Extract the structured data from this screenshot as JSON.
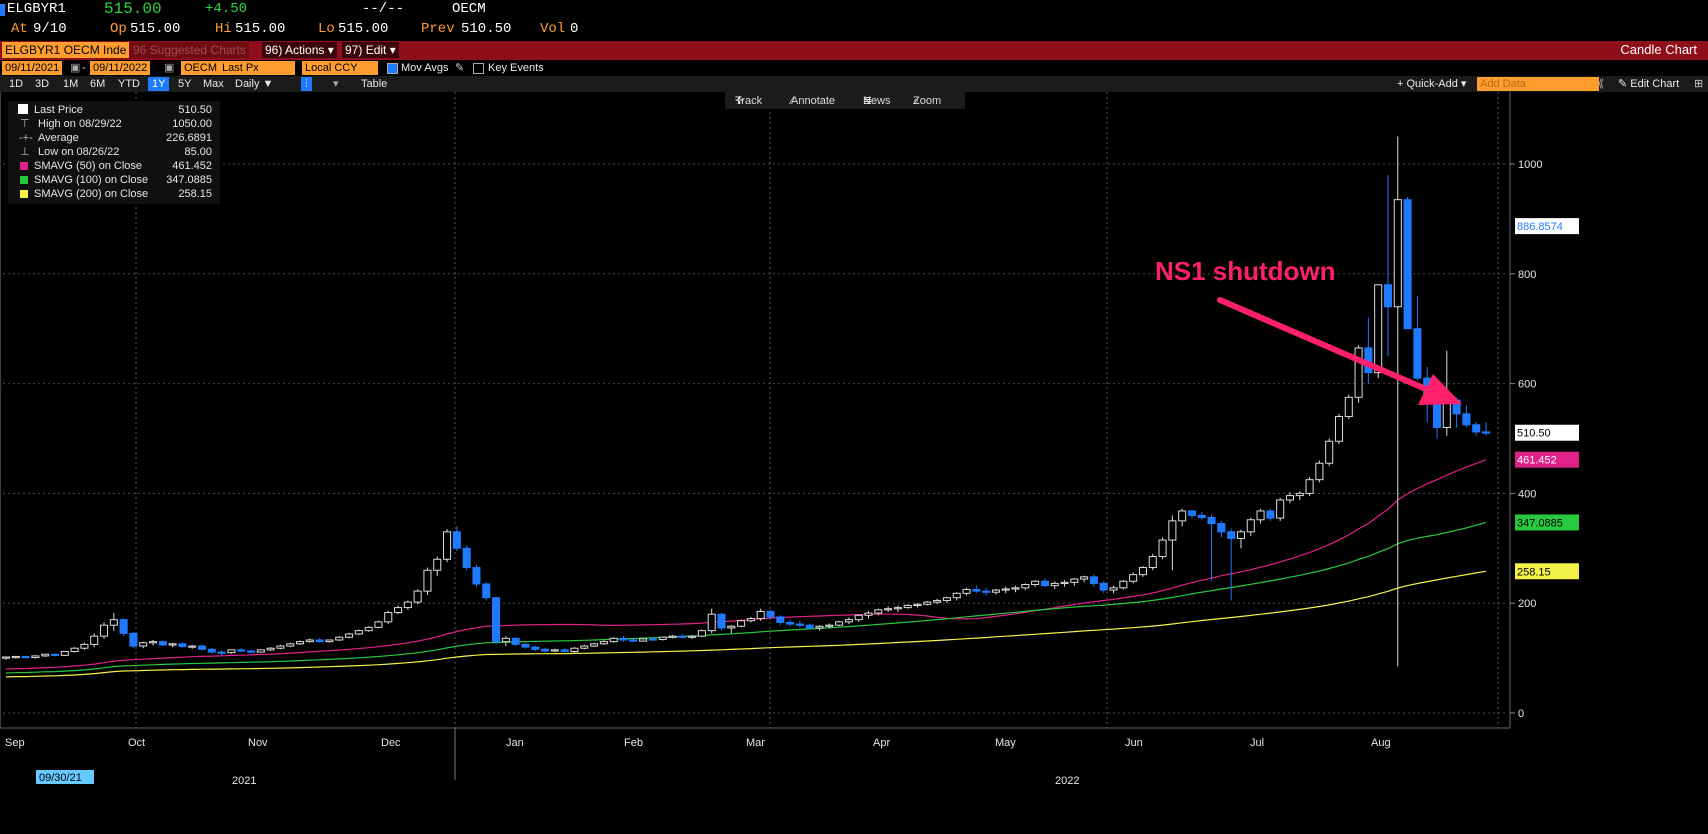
{
  "header": {
    "ticker": "ELGBYR1",
    "last": "515.00",
    "change": "+4.50",
    "dashes": "--/--",
    "exchange": "OECM",
    "at_label": "At",
    "at_value": "9/10",
    "op_label": "Op",
    "op_value": "515.00",
    "hi_label": "Hi",
    "hi_value": "515.00",
    "lo_label": "Lo",
    "lo_value": "515.00",
    "prev_label": "Prev",
    "prev_value": "510.50",
    "vol_label": "Vol",
    "vol_value": "0"
  },
  "redbar": {
    "security": "ELGBYR1 OECM Inde",
    "suggested": "96 Suggested Charts",
    "actions_num": "96)",
    "actions": "Actions",
    "edit_num": "97)",
    "edit": "Edit",
    "chart_type": "Candle Chart"
  },
  "toolbar": {
    "start_date": "09/11/2021",
    "end_date": "09/11/2022",
    "source": "OECM",
    "field": "Last Px",
    "currency": "Local CCY",
    "mov_avgs": "Mov Avgs",
    "key_events": "Key Events",
    "periods": [
      "1D",
      "3D",
      "1M",
      "6M",
      "YTD",
      "1Y",
      "5Y",
      "Max"
    ],
    "selected_period": "1Y",
    "frequency": "Daily",
    "table": "Table",
    "quick_add": "+ Quick-Add",
    "add_data_placeholder": "Add Data",
    "edit_chart": "Edit Chart"
  },
  "overlay": {
    "track": "Track",
    "annotate": "Annotate",
    "news": "News",
    "zoom": "Zoom"
  },
  "legend": [
    {
      "label": "Last Price",
      "value": "510.50",
      "color": "#ffffff"
    },
    {
      "label": "High on 08/29/22",
      "value": "1050.00",
      "color": ""
    },
    {
      "label": "Average",
      "value": "226.6891",
      "color": ""
    },
    {
      "label": "Low on 08/26/22",
      "value": "85.00",
      "color": ""
    },
    {
      "label": "SMAVG (50)  on Close",
      "value": "461.452",
      "color": "#e0218a"
    },
    {
      "label": "SMAVG (100)  on Close",
      "value": "347.0885",
      "color": "#27c93f"
    },
    {
      "label": "SMAVG (200)  on Close",
      "value": "258.15",
      "color": "#f2f24a"
    }
  ],
  "chart_data": {
    "type": "candlestick",
    "annotation": "NS1 shutdown",
    "ylim": [
      -10,
      1080
    ],
    "yticks": [
      0,
      200,
      400,
      600,
      800,
      1000
    ],
    "x_months": [
      "Sep",
      "Oct",
      "Nov",
      "Dec",
      "Jan",
      "Feb",
      "Mar",
      "Apr",
      "May",
      "Jun",
      "Jul",
      "Aug"
    ],
    "x_years": [
      "2021",
      "2022"
    ],
    "x_start_tag": "09/30/21",
    "price_tags": [
      {
        "label": "886.8574",
        "value": 886.8574,
        "color": "#ffffff",
        "text_color": "#1e7bff"
      },
      {
        "label": "510.50",
        "value": 510.5,
        "color": "#ffffff",
        "text_color": "#000000"
      },
      {
        "label": "461.452",
        "value": 461.452,
        "color": "#e0218a",
        "text_color": "#ffffff"
      },
      {
        "label": "347.0885",
        "value": 347.0885,
        "color": "#27c93f",
        "text_color": "#000000"
      },
      {
        "label": "258.15",
        "value": 258.15,
        "color": "#f2f24a",
        "text_color": "#000000"
      }
    ],
    "ohlc": [
      [
        100,
        103,
        97,
        102
      ],
      [
        102,
        104,
        99,
        103
      ],
      [
        103,
        103,
        100,
        101
      ],
      [
        101,
        105,
        99,
        104
      ],
      [
        104,
        108,
        102,
        107
      ],
      [
        107,
        108,
        103,
        105
      ],
      [
        105,
        113,
        104,
        112
      ],
      [
        112,
        120,
        110,
        118
      ],
      [
        118,
        128,
        115,
        125
      ],
      [
        125,
        145,
        120,
        140
      ],
      [
        140,
        165,
        135,
        160
      ],
      [
        160,
        182,
        150,
        170
      ],
      [
        170,
        172,
        140,
        145
      ],
      [
        145,
        147,
        118,
        122
      ],
      [
        122,
        130,
        118,
        128
      ],
      [
        128,
        133,
        123,
        130
      ],
      [
        130,
        132,
        122,
        124
      ],
      [
        124,
        128,
        120,
        126
      ],
      [
        126,
        128,
        119,
        121
      ],
      [
        121,
        124,
        117,
        122
      ],
      [
        122,
        124,
        114,
        116
      ],
      [
        116,
        119,
        108,
        111
      ],
      [
        111,
        114,
        105,
        110
      ],
      [
        110,
        116,
        108,
        115
      ],
      [
        115,
        118,
        111,
        113
      ],
      [
        113,
        115,
        109,
        111
      ],
      [
        111,
        116,
        110,
        115
      ],
      [
        115,
        120,
        113,
        118
      ],
      [
        118,
        124,
        116,
        122
      ],
      [
        122,
        128,
        120,
        126
      ],
      [
        126,
        132,
        124,
        130
      ],
      [
        130,
        136,
        128,
        133
      ],
      [
        133,
        136,
        128,
        130
      ],
      [
        130,
        134,
        128,
        133
      ],
      [
        133,
        140,
        131,
        138
      ],
      [
        138,
        146,
        136,
        144
      ],
      [
        144,
        152,
        142,
        150
      ],
      [
        150,
        158,
        148,
        156
      ],
      [
        156,
        168,
        154,
        166
      ],
      [
        166,
        186,
        162,
        183
      ],
      [
        183,
        196,
        180,
        192
      ],
      [
        192,
        205,
        188,
        202
      ],
      [
        202,
        225,
        198,
        222
      ],
      [
        222,
        265,
        215,
        260
      ],
      [
        260,
        285,
        250,
        280
      ],
      [
        280,
        335,
        275,
        330
      ],
      [
        330,
        340,
        295,
        300
      ],
      [
        300,
        305,
        260,
        265
      ],
      [
        265,
        270,
        230,
        235
      ],
      [
        235,
        238,
        205,
        210
      ],
      [
        210,
        212,
        125,
        130
      ],
      [
        130,
        140,
        122,
        136
      ],
      [
        136,
        138,
        122,
        125
      ],
      [
        125,
        127,
        117,
        120
      ],
      [
        120,
        123,
        113,
        116
      ],
      [
        116,
        119,
        110,
        113
      ],
      [
        113,
        117,
        111,
        115
      ],
      [
        115,
        118,
        111,
        112
      ],
      [
        112,
        120,
        110,
        118
      ],
      [
        118,
        124,
        116,
        122
      ],
      [
        122,
        128,
        120,
        126
      ],
      [
        126,
        132,
        124,
        130
      ],
      [
        130,
        138,
        128,
        136
      ],
      [
        136,
        140,
        130,
        133
      ],
      [
        133,
        136,
        129,
        131
      ],
      [
        131,
        136,
        130,
        135
      ],
      [
        135,
        138,
        132,
        134
      ],
      [
        134,
        139,
        132,
        138
      ],
      [
        138,
        142,
        136,
        140
      ],
      [
        140,
        144,
        136,
        138
      ],
      [
        138,
        142,
        135,
        140
      ],
      [
        140,
        152,
        138,
        150
      ],
      [
        150,
        190,
        145,
        180
      ],
      [
        180,
        182,
        150,
        155
      ],
      [
        155,
        160,
        145,
        158
      ],
      [
        158,
        170,
        156,
        168
      ],
      [
        168,
        175,
        165,
        172
      ],
      [
        172,
        190,
        168,
        185
      ],
      [
        185,
        188,
        170,
        175
      ],
      [
        175,
        178,
        160,
        165
      ],
      [
        165,
        170,
        158,
        162
      ],
      [
        162,
        168,
        156,
        160
      ],
      [
        160,
        163,
        152,
        155
      ],
      [
        155,
        160,
        150,
        158
      ],
      [
        158,
        163,
        154,
        160
      ],
      [
        160,
        168,
        158,
        166
      ],
      [
        166,
        174,
        162,
        170
      ],
      [
        170,
        180,
        166,
        178
      ],
      [
        178,
        186,
        172,
        182
      ],
      [
        182,
        190,
        178,
        188
      ],
      [
        188,
        194,
        184,
        190
      ],
      [
        190,
        196,
        184,
        192
      ],
      [
        192,
        198,
        190,
        196
      ],
      [
        196,
        200,
        192,
        198
      ],
      [
        198,
        204,
        196,
        202
      ],
      [
        202,
        208,
        198,
        205
      ],
      [
        205,
        212,
        200,
        210
      ],
      [
        210,
        220,
        205,
        218
      ],
      [
        218,
        228,
        214,
        225
      ],
      [
        225,
        232,
        218,
        222
      ],
      [
        222,
        228,
        214,
        220
      ],
      [
        220,
        226,
        216,
        224
      ],
      [
        224,
        230,
        218,
        226
      ],
      [
        226,
        232,
        220,
        228
      ],
      [
        228,
        236,
        224,
        234
      ],
      [
        234,
        242,
        230,
        240
      ],
      [
        240,
        245,
        230,
        232
      ],
      [
        232,
        240,
        226,
        236
      ],
      [
        236,
        242,
        230,
        238
      ],
      [
        238,
        246,
        232,
        244
      ],
      [
        244,
        250,
        238,
        248
      ],
      [
        248,
        252,
        230,
        236
      ],
      [
        236,
        240,
        218,
        224
      ],
      [
        224,
        232,
        218,
        228
      ],
      [
        228,
        242,
        225,
        240
      ],
      [
        240,
        256,
        236,
        252
      ],
      [
        252,
        268,
        248,
        265
      ],
      [
        265,
        290,
        260,
        285
      ],
      [
        285,
        320,
        280,
        315
      ],
      [
        315,
        360,
        260,
        350
      ],
      [
        350,
        372,
        340,
        368
      ],
      [
        368,
        370,
        355,
        360
      ],
      [
        360,
        366,
        352,
        356
      ],
      [
        356,
        362,
        240,
        345
      ],
      [
        345,
        350,
        320,
        330
      ],
      [
        330,
        336,
        205,
        318
      ],
      [
        318,
        334,
        300,
        330
      ],
      [
        330,
        356,
        322,
        352
      ],
      [
        352,
        372,
        345,
        368
      ],
      [
        368,
        372,
        350,
        355
      ],
      [
        355,
        392,
        350,
        388
      ],
      [
        388,
        402,
        382,
        396
      ],
      [
        396,
        404,
        388,
        400
      ],
      [
        400,
        430,
        395,
        425
      ],
      [
        425,
        460,
        420,
        455
      ],
      [
        455,
        500,
        450,
        495
      ],
      [
        495,
        545,
        490,
        540
      ],
      [
        540,
        580,
        535,
        575
      ],
      [
        575,
        670,
        565,
        665
      ],
      [
        665,
        720,
        600,
        620
      ],
      [
        620,
        780,
        610,
        780
      ],
      [
        780,
        980,
        650,
        740
      ],
      [
        740,
        1050,
        85,
        935
      ],
      [
        935,
        940,
        700,
        700
      ],
      [
        700,
        760,
        605,
        610
      ],
      [
        610,
        630,
        530,
        575
      ],
      [
        575,
        590,
        500,
        520
      ],
      [
        520,
        660,
        505,
        570
      ],
      [
        570,
        575,
        520,
        545
      ],
      [
        545,
        560,
        520,
        525
      ],
      [
        525,
        530,
        505,
        512
      ],
      [
        512,
        530,
        505,
        510.5
      ]
    ],
    "sma50_end": 461.452,
    "sma100_end": 347.0885,
    "sma200_end": 258.15
  }
}
